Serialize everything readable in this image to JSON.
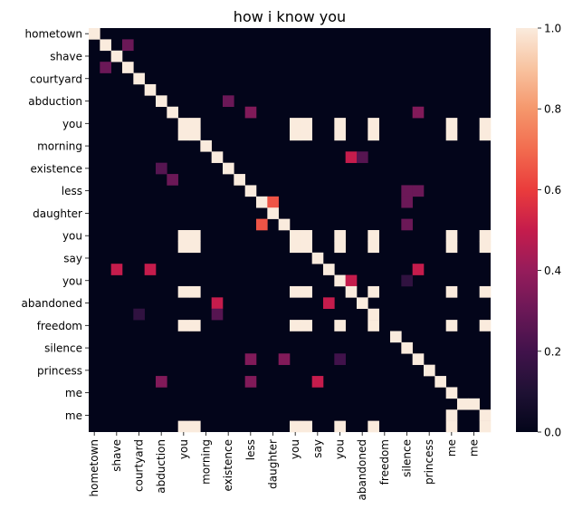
{
  "chart_data": {
    "type": "heatmap",
    "title": "how i know you",
    "xlabel": "",
    "ylabel": "",
    "tokens": [
      "hometown",
      "",
      "shave",
      "",
      "courtyard",
      "",
      "abduction",
      "",
      "you",
      "",
      "morning",
      "",
      "existence",
      "",
      "less",
      "",
      "daughter",
      "",
      "you",
      "",
      "say",
      "",
      "you",
      "",
      "abandoned",
      "",
      "freedom",
      "",
      "silence",
      "",
      "princess",
      "",
      "me",
      "",
      "me",
      ""
    ],
    "x_tick_labels": [
      "hometown",
      "shave",
      "courtyard",
      "abduction",
      "you",
      "morning",
      "existence",
      "less",
      "daughter",
      "you",
      "say",
      "you",
      "abandoned",
      "freedom",
      "silence",
      "princess",
      "me",
      "me"
    ],
    "y_tick_labels": [
      "hometown",
      "shave",
      "courtyard",
      "abduction",
      "you",
      "morning",
      "existence",
      "less",
      "daughter",
      "you",
      "say",
      "you",
      "abandoned",
      "freedom",
      "silence",
      "princess",
      "me",
      "me"
    ],
    "colorbar": {
      "min": 0.0,
      "max": 1.0,
      "ticks": [
        "0.0",
        "0.2",
        "0.4",
        "0.6",
        "0.8",
        "1.0"
      ],
      "colormap": "rocket"
    },
    "matrix_size": 36,
    "cells": [
      [
        0,
        0,
        1.0
      ],
      [
        1,
        1,
        1.0
      ],
      [
        1,
        3,
        0.3
      ],
      [
        2,
        2,
        1.0
      ],
      [
        3,
        1,
        0.3
      ],
      [
        3,
        3,
        1.0
      ],
      [
        4,
        4,
        1.0
      ],
      [
        5,
        5,
        1.0
      ],
      [
        6,
        6,
        1.0
      ],
      [
        6,
        12,
        0.3
      ],
      [
        7,
        7,
        1.0
      ],
      [
        7,
        14,
        0.35
      ],
      [
        7,
        29,
        0.35
      ],
      [
        8,
        8,
        1.0
      ],
      [
        8,
        9,
        1.0
      ],
      [
        8,
        18,
        1.0
      ],
      [
        8,
        19,
        1.0
      ],
      [
        8,
        22,
        1.0
      ],
      [
        8,
        25,
        1.0
      ],
      [
        8,
        32,
        1.0
      ],
      [
        8,
        35,
        1.0
      ],
      [
        9,
        8,
        1.0
      ],
      [
        9,
        9,
        1.0
      ],
      [
        9,
        18,
        1.0
      ],
      [
        9,
        19,
        1.0
      ],
      [
        9,
        22,
        1.0
      ],
      [
        9,
        25,
        1.0
      ],
      [
        9,
        32,
        1.0
      ],
      [
        9,
        35,
        1.0
      ],
      [
        10,
        10,
        1.0
      ],
      [
        11,
        11,
        1.0
      ],
      [
        11,
        23,
        0.5
      ],
      [
        11,
        24,
        0.25
      ],
      [
        12,
        6,
        0.25
      ],
      [
        12,
        12,
        1.0
      ],
      [
        13,
        7,
        0.3
      ],
      [
        13,
        13,
        1.0
      ],
      [
        14,
        14,
        1.0
      ],
      [
        14,
        28,
        0.3
      ],
      [
        14,
        29,
        0.3
      ],
      [
        15,
        15,
        1.0
      ],
      [
        15,
        16,
        0.65
      ],
      [
        15,
        28,
        0.3
      ],
      [
        16,
        16,
        1.0
      ],
      [
        17,
        15,
        0.65
      ],
      [
        17,
        17,
        1.0
      ],
      [
        17,
        28,
        0.3
      ],
      [
        18,
        8,
        1.0
      ],
      [
        18,
        9,
        1.0
      ],
      [
        18,
        18,
        1.0
      ],
      [
        18,
        19,
        1.0
      ],
      [
        18,
        22,
        1.0
      ],
      [
        18,
        25,
        1.0
      ],
      [
        18,
        32,
        1.0
      ],
      [
        18,
        35,
        1.0
      ],
      [
        19,
        8,
        1.0
      ],
      [
        19,
        9,
        1.0
      ],
      [
        19,
        18,
        1.0
      ],
      [
        19,
        19,
        1.0
      ],
      [
        19,
        22,
        1.0
      ],
      [
        19,
        25,
        1.0
      ],
      [
        19,
        32,
        1.0
      ],
      [
        19,
        35,
        1.0
      ],
      [
        20,
        20,
        1.0
      ],
      [
        21,
        2,
        0.5
      ],
      [
        21,
        5,
        0.5
      ],
      [
        21,
        21,
        1.0
      ],
      [
        21,
        29,
        0.5
      ],
      [
        22,
        22,
        1.0
      ],
      [
        22,
        23,
        0.5
      ],
      [
        22,
        28,
        0.15
      ],
      [
        23,
        8,
        1.0
      ],
      [
        23,
        9,
        1.0
      ],
      [
        23,
        18,
        1.0
      ],
      [
        23,
        19,
        1.0
      ],
      [
        23,
        23,
        1.0
      ],
      [
        23,
        25,
        1.0
      ],
      [
        23,
        32,
        1.0
      ],
      [
        23,
        35,
        1.0
      ],
      [
        24,
        11,
        0.5
      ],
      [
        24,
        21,
        0.5
      ],
      [
        24,
        24,
        1.0
      ],
      [
        25,
        4,
        0.15
      ],
      [
        25,
        11,
        0.25
      ],
      [
        25,
        25,
        1.0
      ],
      [
        26,
        8,
        1.0
      ],
      [
        26,
        9,
        1.0
      ],
      [
        26,
        18,
        1.0
      ],
      [
        26,
        19,
        1.0
      ],
      [
        26,
        22,
        1.0
      ],
      [
        26,
        25,
        1.0
      ],
      [
        26,
        32,
        1.0
      ],
      [
        26,
        35,
        1.0
      ],
      [
        27,
        27,
        1.0
      ],
      [
        28,
        28,
        1.0
      ],
      [
        29,
        14,
        0.35
      ],
      [
        29,
        17,
        0.35
      ],
      [
        29,
        22,
        0.2
      ],
      [
        29,
        29,
        1.0
      ],
      [
        30,
        30,
        1.0
      ],
      [
        31,
        6,
        0.35
      ],
      [
        31,
        14,
        0.35
      ],
      [
        31,
        20,
        0.5
      ],
      [
        31,
        31,
        1.0
      ],
      [
        32,
        32,
        1.0
      ],
      [
        33,
        33,
        1.0
      ],
      [
        33,
        34,
        1.0
      ],
      [
        34,
        32,
        1.0
      ],
      [
        34,
        35,
        1.0
      ],
      [
        35,
        8,
        1.0
      ],
      [
        35,
        9,
        1.0
      ],
      [
        35,
        18,
        1.0
      ],
      [
        35,
        19,
        1.0
      ],
      [
        35,
        22,
        1.0
      ],
      [
        35,
        25,
        1.0
      ],
      [
        35,
        32,
        1.0
      ],
      [
        35,
        35,
        1.0
      ]
    ]
  }
}
